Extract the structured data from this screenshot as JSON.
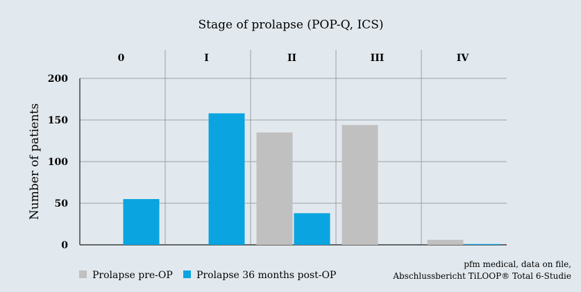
{
  "chart_data": {
    "type": "bar",
    "title": "Stage of prolapse (POP-Q, ICS)",
    "xlabel": "",
    "ylabel": "Number of patients",
    "categories": [
      "0",
      "I",
      "II",
      "III",
      "IV"
    ],
    "series": [
      {
        "name": "Prolapse pre-OP",
        "color": "#c0c0c0",
        "values": [
          0,
          0,
          135,
          144,
          6
        ]
      },
      {
        "name": "Prolapse 36 months post-OP",
        "color": "#0aa4e0",
        "values": [
          55,
          158,
          38,
          0,
          1
        ]
      }
    ],
    "ylim": [
      0,
      200
    ],
    "yticks": [
      0,
      50,
      100,
      150,
      200
    ],
    "grid": true,
    "legend": "bottom-left"
  },
  "source": {
    "line1": "pfm medical, data on file,",
    "line2": "Abschlussbericht TiLOOP® Total 6-Studie"
  }
}
